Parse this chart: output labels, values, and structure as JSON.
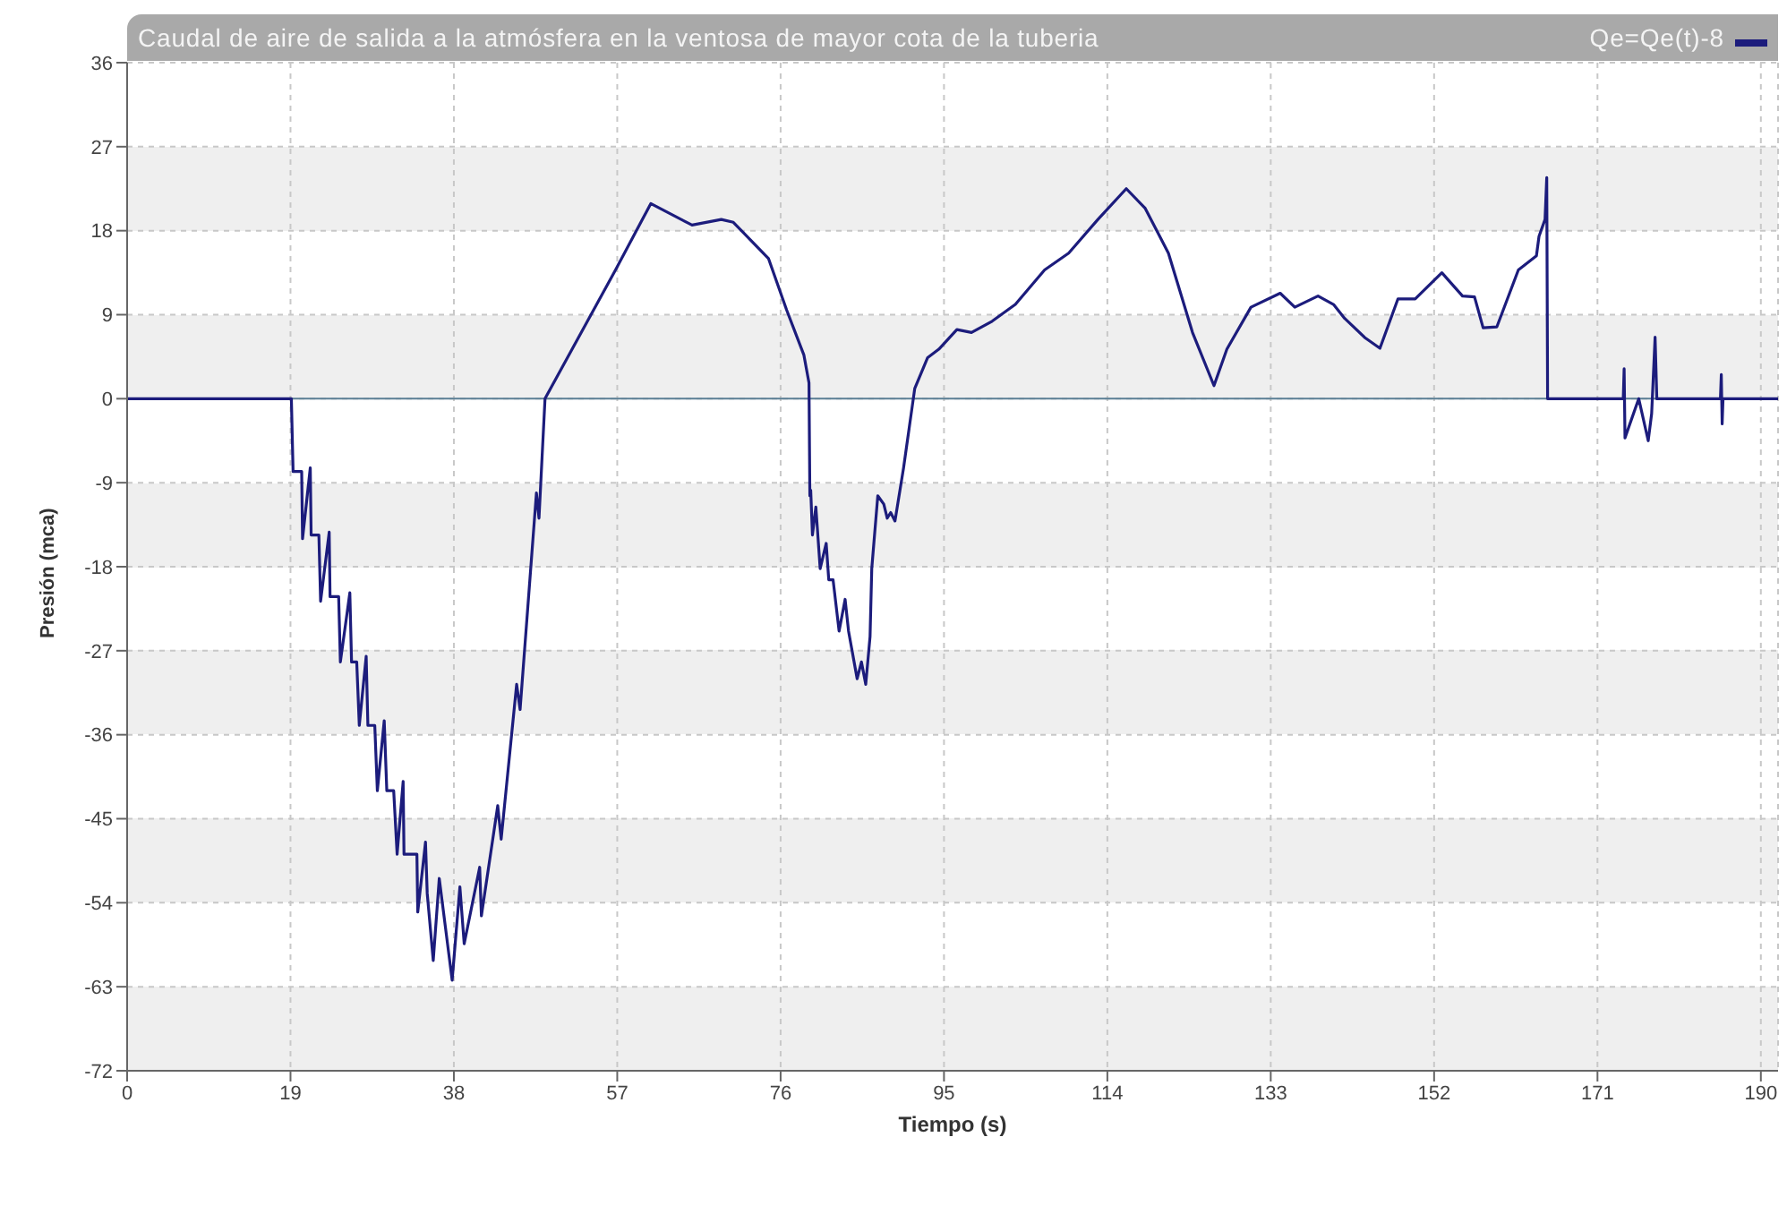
{
  "chart_data": {
    "type": "line",
    "title": "Caudal de aire de salida a la atmósfera en la ventosa de mayor cota de la tuberia",
    "xlabel": "Tiempo (s)",
    "ylabel": "Presión (mca)",
    "x": [
      0,
      19.1,
      19.3,
      20.3,
      20.4,
      21.3,
      21.4,
      22.3,
      22.5,
      23.5,
      23.6,
      24.6,
      24.8,
      25.9,
      26.1,
      26.7,
      27.0,
      27.8,
      28.0,
      28.8,
      29.1,
      29.9,
      30.2,
      31.0,
      31.4,
      32.1,
      32.2,
      33.7,
      33.8,
      34.7,
      34.9,
      35.6,
      36.3,
      37.0,
      37.8,
      38.7,
      39.2,
      41.0,
      41.2,
      43.1,
      43.5,
      45.3,
      45.7,
      47.6,
      47.9,
      48.6,
      56.8,
      60.9,
      65.7,
      69.1,
      70.5,
      74.6,
      76.7,
      78.7,
      79.3,
      79.4,
      79.5,
      79.7,
      80.1,
      80.6,
      81.3,
      81.6,
      82.1,
      82.8,
      83.5,
      83.9,
      84.9,
      85.4,
      85.9,
      86.4,
      86.6,
      87.3,
      88.0,
      88.4,
      88.8,
      89.3,
      90.3,
      91.6,
      93.1,
      94.4,
      96.5,
      98.2,
      100.6,
      103.3,
      106.7,
      109.5,
      112.9,
      116.2,
      118.4,
      121.1,
      123.9,
      126.4,
      127.9,
      130.7,
      134.1,
      135.8,
      138.5,
      140.3,
      141.6,
      144.0,
      145.7,
      147.8,
      149.8,
      152.9,
      155.3,
      156.7,
      157.7,
      159.3,
      161.8,
      163.9,
      164.2,
      164.9,
      165.1,
      165.2,
      174.0,
      174.1,
      174.2,
      175.8,
      176.9,
      177.3,
      177.7,
      177.9,
      185.3,
      185.4,
      185.5,
      185.6,
      192
    ],
    "series": [
      {
        "name": "Qe=Qe(t)-8",
        "color": "#1c1c7c",
        "values": [
          0,
          0,
          -7.8,
          -7.8,
          -15,
          -7.4,
          -14.6,
          -14.6,
          -21.7,
          -14.3,
          -21.2,
          -21.2,
          -28.2,
          -20.8,
          -28.2,
          -28.2,
          -35,
          -27.6,
          -35,
          -35,
          -42,
          -34.5,
          -42,
          -42,
          -48.8,
          -41,
          -48.8,
          -48.8,
          -55,
          -47.5,
          -53,
          -60.2,
          -51.4,
          -56.5,
          -62.3,
          -52.3,
          -58.4,
          -50.2,
          -55.4,
          -43.6,
          -47.2,
          -30.6,
          -33.3,
          -10.1,
          -12.8,
          0,
          13.8,
          20.9,
          18.6,
          19.2,
          18.9,
          15.0,
          9.5,
          4.7,
          1.7,
          -10.4,
          -9.8,
          -14.6,
          -11.6,
          -18.2,
          -15.5,
          -19.4,
          -19.4,
          -24.9,
          -21.5,
          -24.9,
          -30.0,
          -28.2,
          -30.6,
          -25.5,
          -18.2,
          -10.4,
          -11.3,
          -12.8,
          -12.2,
          -13.1,
          -7.4,
          1.1,
          4.4,
          5.3,
          7.4,
          7.1,
          8.3,
          10.1,
          13.8,
          15.6,
          19.2,
          22.5,
          20.4,
          15.6,
          7.1,
          1.4,
          5.3,
          9.8,
          11.3,
          9.8,
          11.0,
          10.1,
          8.6,
          6.5,
          5.4,
          10.7,
          10.7,
          13.5,
          11.0,
          10.9,
          7.6,
          7.7,
          13.8,
          15.3,
          17.4,
          19.2,
          23.7,
          0,
          0,
          3.2,
          -4.2,
          0,
          -4.5,
          -1.6,
          6.6,
          0,
          0,
          2.6,
          -2.7,
          0,
          0
        ]
      }
    ],
    "xlim": [
      0,
      192
    ],
    "xticks": [
      0,
      19,
      38,
      57,
      76,
      95,
      114,
      133,
      152,
      171,
      190
    ],
    "ylim": [
      -72,
      36
    ],
    "yticks": [
      -72,
      -63,
      -54,
      -45,
      -36,
      -27,
      -18,
      -9,
      0,
      9,
      18,
      27,
      36
    ],
    "ref_lines": [
      {
        "axis": "y",
        "value": 0,
        "color": "#5b7f95"
      }
    ],
    "grid": true,
    "legend": "top right",
    "marker": "none",
    "line_style": "solid"
  }
}
